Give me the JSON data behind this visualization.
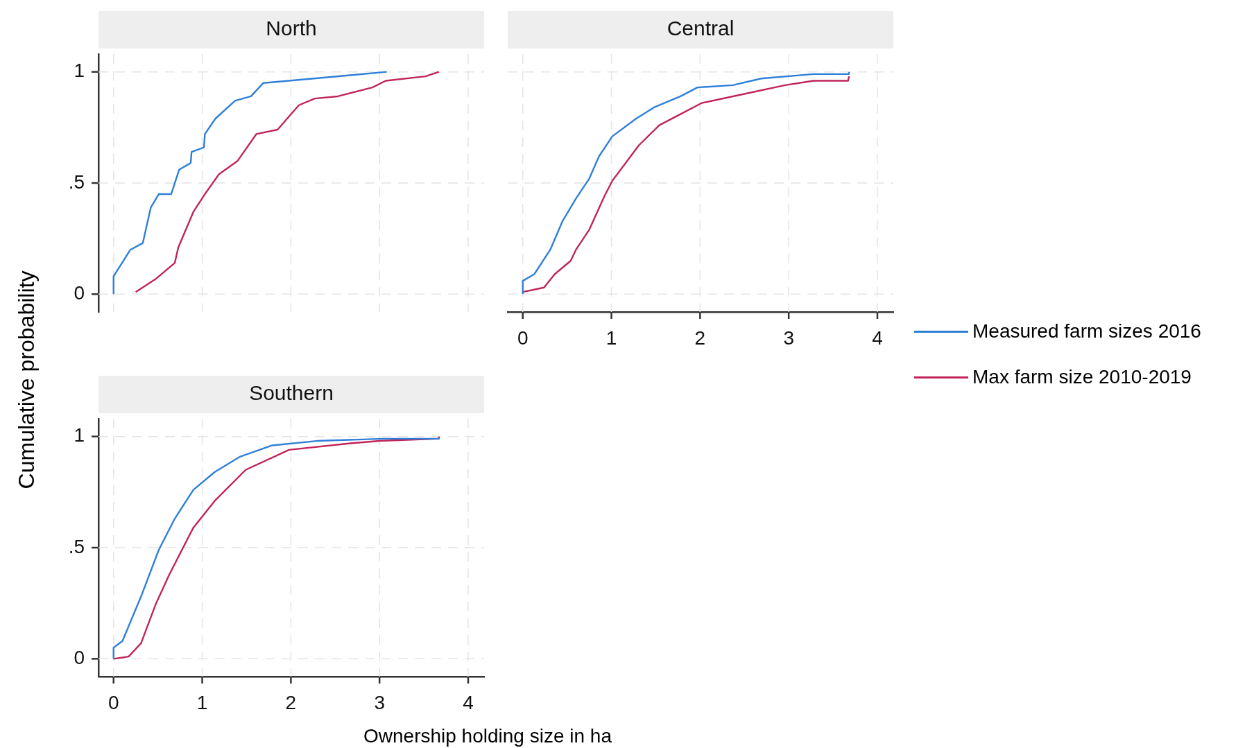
{
  "chart_data": [
    {
      "type": "line",
      "title": "North",
      "ylabel": "Cumulative probability",
      "xlim": [
        -0.17,
        4.18
      ],
      "ylim": [
        -0.08,
        1.08
      ],
      "xticks": [
        0,
        1,
        2,
        3,
        4
      ],
      "yticks": [
        0,
        {
          "value": 0.5,
          "label": ".5"
        },
        1
      ],
      "grid": true,
      "tick_labels": "y",
      "series": [
        {
          "color": "#2f7fd8",
          "x": [
            0,
            0,
            0.19,
            0.33,
            0.42,
            0.51,
            0.65,
            0.74,
            0.87,
            0.88,
            1.02,
            1.03,
            1.15,
            1.37,
            1.55,
            1.69,
            2.26,
            3.08
          ],
          "values": [
            0,
            0.08,
            0.2,
            0.23,
            0.39,
            0.45,
            0.45,
            0.56,
            0.59,
            0.64,
            0.66,
            0.72,
            0.79,
            0.87,
            0.89,
            0.95,
            0.97,
            1.0
          ]
        },
        {
          "color": "#c0245a",
          "x": [
            0.25,
            0.48,
            0.69,
            0.73,
            0.9,
            1.03,
            1.19,
            1.4,
            1.61,
            1.85,
            2.09,
            2.27,
            2.53,
            2.92,
            3.07,
            3.52,
            3.67
          ],
          "values": [
            0.01,
            0.07,
            0.14,
            0.21,
            0.37,
            0.45,
            0.54,
            0.6,
            0.72,
            0.74,
            0.85,
            0.88,
            0.89,
            0.93,
            0.96,
            0.98,
            1.0
          ]
        }
      ]
    },
    {
      "type": "line",
      "title": "Central",
      "xlim": [
        -0.17,
        4.18
      ],
      "ylim": [
        -0.08,
        1.08
      ],
      "xticks": [
        0,
        1,
        2,
        3,
        4
      ],
      "yticks": [
        0,
        0.5,
        1
      ],
      "grid": true,
      "tick_labels": "x",
      "legend": "right",
      "series": [
        {
          "name": "Measured farm sizes 2016",
          "color": "#2f7fd8",
          "x": [
            0,
            0,
            0.13,
            0.31,
            0.45,
            0.6,
            0.75,
            0.86,
            1.01,
            1.28,
            1.48,
            1.78,
            1.97,
            2.37,
            2.69,
            3.28,
            3.68,
            3.68
          ],
          "values": [
            0,
            0.06,
            0.09,
            0.2,
            0.33,
            0.43,
            0.52,
            0.62,
            0.71,
            0.79,
            0.84,
            0.89,
            0.93,
            0.94,
            0.97,
            0.99,
            0.99,
            1.0
          ]
        },
        {
          "name": "Max farm size 2010-2019",
          "color": "#c0245a",
          "x": [
            0,
            0.24,
            0.36,
            0.54,
            0.6,
            0.75,
            0.92,
            1.01,
            1.31,
            1.54,
            1.78,
            2.02,
            2.49,
            2.96,
            3.28,
            3.67,
            3.68
          ],
          "values": [
            0.01,
            0.03,
            0.09,
            0.15,
            0.2,
            0.29,
            0.44,
            0.51,
            0.67,
            0.76,
            0.81,
            0.86,
            0.9,
            0.94,
            0.96,
            0.96,
            0.98
          ]
        }
      ]
    },
    {
      "type": "line",
      "title": "Southern",
      "xlabel": "Ownership holding size in ha",
      "xlim": [
        -0.17,
        4.18
      ],
      "ylim": [
        -0.08,
        1.08
      ],
      "xticks": [
        0,
        1,
        2,
        3,
        4
      ],
      "yticks": [
        0,
        {
          "value": 0.5,
          "label": ".5"
        },
        1
      ],
      "grid": true,
      "series": [
        {
          "color": "#2f7fd8",
          "x": [
            0,
            0,
            0.1,
            0.31,
            0.51,
            0.69,
            0.9,
            1.14,
            1.43,
            1.79,
            2.29,
            3.04,
            3.68
          ],
          "values": [
            0,
            0.05,
            0.08,
            0.28,
            0.49,
            0.63,
            0.76,
            0.84,
            0.91,
            0.96,
            0.98,
            0.99,
            0.99
          ]
        },
        {
          "color": "#c0245a",
          "x": [
            0,
            0.17,
            0.31,
            0.48,
            0.63,
            0.9,
            1.14,
            1.49,
            1.98,
            2.69,
            3.0,
            3.67,
            3.67
          ],
          "values": [
            0,
            0.01,
            0.07,
            0.25,
            0.38,
            0.59,
            0.71,
            0.85,
            0.94,
            0.97,
            0.98,
            0.99,
            1.0
          ]
        }
      ]
    }
  ]
}
